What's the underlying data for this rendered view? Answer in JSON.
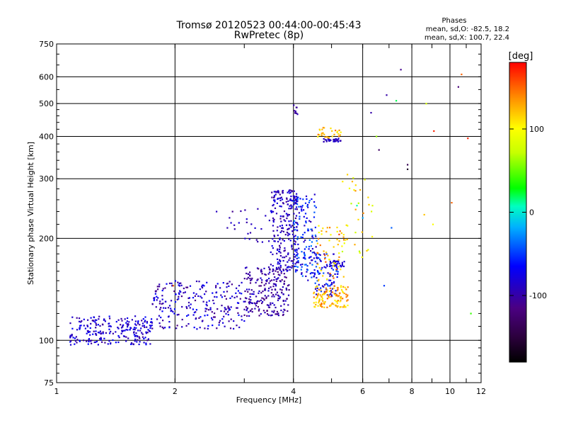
{
  "chart_data": {
    "type": "scatter",
    "title": "Tromsø 20120523 00:44:00-00:45:43",
    "subtitle": "RwPretec (8p)",
    "xlabel": "Frequency [MHz]",
    "ylabel": "Stationary phase Virtual Height [km]",
    "x_scale": "log",
    "y_scale": "log",
    "xlim": [
      1,
      12
    ],
    "ylim": [
      75,
      750
    ],
    "x_ticks": [
      1,
      2,
      4,
      6,
      8,
      10,
      12
    ],
    "x_tick_labels": [
      "1",
      "2",
      "4",
      "6",
      "8",
      "10",
      "12"
    ],
    "y_ticks": [
      75,
      100,
      200,
      300,
      400,
      500,
      600,
      750
    ],
    "y_tick_labels": [
      "75",
      "100",
      "200",
      "300",
      "400",
      "500",
      "600",
      "750"
    ],
    "grid": true,
    "phases": {
      "heading": "Phases",
      "line_o": "mean, sd,O: -82.5, 18.2",
      "line_x": "mean, sd,X: 100.7, 22.4"
    },
    "colorbar": {
      "unit": "[deg]",
      "range": [
        -180,
        180
      ],
      "ticks": [
        100,
        0,
        -100
      ],
      "tick_labels": [
        "100",
        "0",
        "-100"
      ]
    },
    "series": [
      {
        "regions": [
          {
            "f": [
              1.08,
              1.75
            ],
            "h": [
              97,
              118
            ],
            "ph": [
              -110,
              -60
            ],
            "n": 240
          },
          {
            "f": [
              1.75,
              3.0
            ],
            "h": [
              108,
              150
            ],
            "ph": [
              -115,
              -60
            ],
            "n": 240
          },
          {
            "f": [
              3.0,
              3.9
            ],
            "h": [
              118,
              165
            ],
            "ph": [
              -120,
              -80
            ],
            "n": 230
          },
          {
            "f": [
              3.5,
              4.1
            ],
            "h": [
              160,
              280
            ],
            "ph": [
              -110,
              -70
            ],
            "n": 230
          },
          {
            "f": [
              2.7,
              3.6
            ],
            "h": [
              195,
              245
            ],
            "ph": [
              -100,
              -80
            ],
            "n": 25
          },
          {
            "f": [
              4.0,
              4.6
            ],
            "h": [
              150,
              270
            ],
            "ph": [
              -100,
              -30
            ],
            "n": 150
          },
          {
            "f": [
              4.5,
              5.2
            ],
            "h": [
              135,
              180
            ],
            "ph": [
              -100,
              -40
            ],
            "n": 90
          },
          {
            "f": [
              4.85,
              5.4
            ],
            "h": [
              165,
              172
            ],
            "ph": [
              -90,
              -80
            ],
            "n": 30
          },
          {
            "f": [
              4.75,
              5.3
            ],
            "h": [
              385,
              395
            ],
            "ph": [
              -100,
              -80
            ],
            "n": 30
          },
          {
            "f": [
              4.0,
              4.1
            ],
            "h": [
              460,
              500
            ],
            "ph": [
              -110,
              -90
            ],
            "n": 10
          }
        ]
      },
      {
        "regions": [
          {
            "f": [
              4.5,
              5.5
            ],
            "h": [
              125,
              145
            ],
            "ph": [
              100,
              150
            ],
            "n": 120
          },
          {
            "f": [
              4.6,
              5.5
            ],
            "h": [
              150,
              220
            ],
            "ph": [
              90,
              160
            ],
            "n": 60
          },
          {
            "f": [
              4.6,
              5.3
            ],
            "h": [
              395,
              425
            ],
            "ph": [
              100,
              150
            ],
            "n": 30
          },
          {
            "f": [
              5.3,
              6.4
            ],
            "h": [
              175,
              320
            ],
            "ph": [
              60,
              140
            ],
            "n": 30
          }
        ]
      },
      {
        "points": [
          [
            2.55,
            240,
            -90
          ],
          [
            2.8,
            240,
            -110
          ],
          [
            1.98,
            145,
            150
          ],
          [
            6.3,
            470,
            -100
          ],
          [
            6.6,
            365,
            -130
          ],
          [
            6.9,
            530,
            -100
          ],
          [
            7.5,
            630,
            -110
          ],
          [
            7.8,
            330,
            -140
          ],
          [
            7.8,
            320,
            -160
          ],
          [
            8.7,
            500,
            80
          ],
          [
            9.05,
            220,
            100
          ],
          [
            9.1,
            415,
            170
          ],
          [
            10.1,
            255,
            150
          ],
          [
            10.5,
            560,
            -120
          ],
          [
            10.7,
            610,
            150
          ],
          [
            11.1,
            395,
            170
          ],
          [
            11.3,
            120,
            40
          ],
          [
            6.5,
            400,
            60
          ],
          [
            7.3,
            510,
            20
          ],
          [
            5.8,
            250,
            10
          ],
          [
            6.0,
            230,
            -20
          ],
          [
            6.8,
            145,
            -50
          ],
          [
            8.6,
            235,
            120
          ],
          [
            7.1,
            215,
            -40
          ]
        ]
      }
    ]
  }
}
